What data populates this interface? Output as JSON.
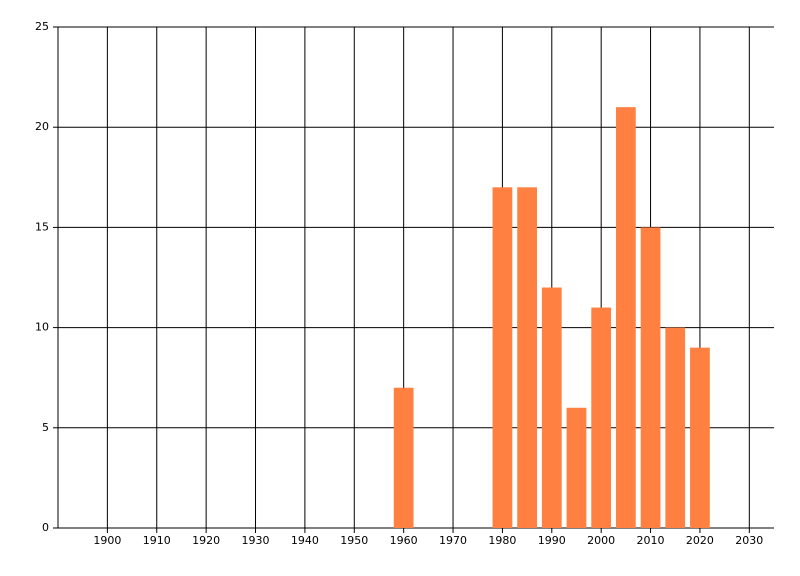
{
  "chart_data": {
    "type": "bar",
    "x": [
      1960,
      1980,
      1985,
      1990,
      1995,
      2000,
      2005,
      2010,
      2015,
      2020
    ],
    "values": [
      7,
      17,
      17,
      12,
      6,
      11,
      21,
      15,
      10,
      9
    ],
    "color": "#ff8040",
    "xlim": [
      1890,
      2035
    ],
    "xticks": [
      1900,
      1910,
      1920,
      1930,
      1940,
      1950,
      1960,
      1970,
      1980,
      1990,
      2000,
      2010,
      2020,
      2030
    ],
    "ylim": [
      0,
      25
    ],
    "yticks": [
      0,
      5,
      10,
      15,
      20,
      25
    ],
    "grid": true
  }
}
